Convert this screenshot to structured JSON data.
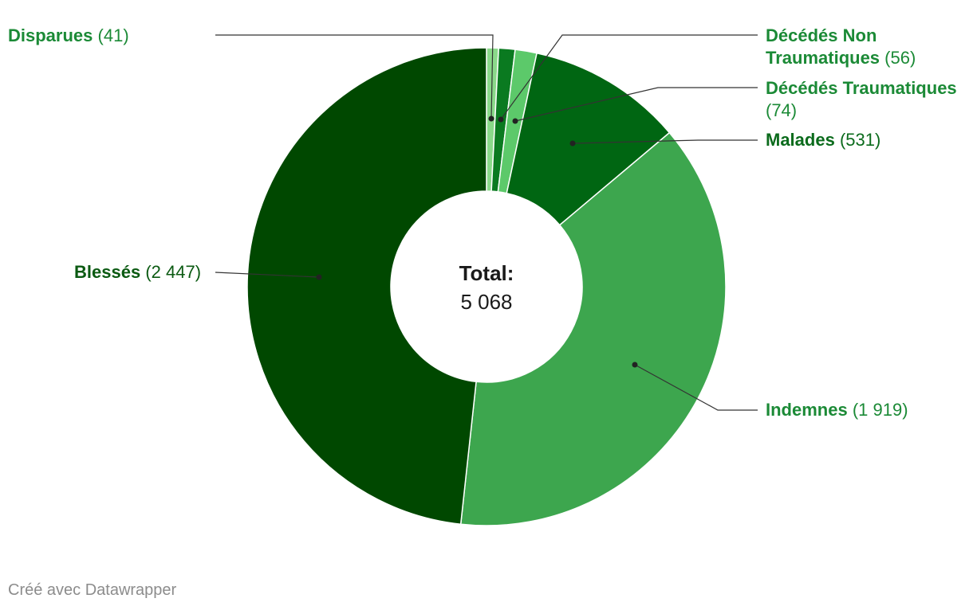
{
  "chart_data": {
    "type": "pie",
    "center_label": "Total:",
    "center_value": "5 068",
    "total": 5068,
    "slices": [
      {
        "name": "Disparues",
        "display": "(41)",
        "value": 41,
        "color": "#8ad98a",
        "label_color": "#1b8a36"
      },
      {
        "name": "Décédés Non Traumatiques",
        "display": "(56)",
        "value": 56,
        "color": "#0a7a20",
        "label_color": "#1b8a36"
      },
      {
        "name": "Décédés Traumatiques",
        "display": "(74)",
        "value": 74,
        "color": "#5cc96a",
        "label_color": "#1b8a36"
      },
      {
        "name": "Malades",
        "display": "(531)",
        "value": 531,
        "color": "#006612",
        "label_color": "#0b6b1c"
      },
      {
        "name": "Indemnes",
        "display": "(1 919)",
        "value": 1919,
        "color": "#3da64e",
        "label_color": "#1b8a36"
      },
      {
        "name": "Blessés",
        "display": "(2 447)",
        "value": 2447,
        "color": "#004800",
        "label_color": "#0b5a12"
      }
    ]
  },
  "credit": "Créé avec Datawrapper"
}
